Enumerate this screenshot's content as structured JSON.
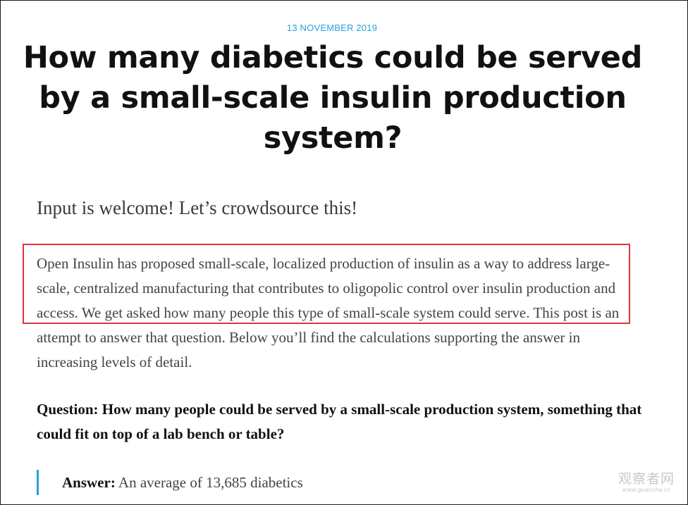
{
  "post": {
    "date": "13 NOVEMBER 2019",
    "title": "How many diabetics could be served by a small-scale insulin production system?",
    "lede": "Input is welcome! Let’s crowdsource this!",
    "body": "Open Insulin has proposed small-scale, localized production of insulin as a way to address large-scale, centralized manufacturing that contributes to oligopolic control over insulin production and access. We get asked how many people this type of small-scale system could serve. This post is an attempt to answer that question. Below you’ll find the calculations supporting the answer in increasing levels of detail.",
    "question": "Question: How many people could be served by a small-scale production system, something that could fit on top of a lab bench or table?",
    "answer": {
      "label": "Answer:",
      "text": " An average of 13,685 diabetics"
    }
  },
  "colors": {
    "accent": "#2aa0d8",
    "highlight_border": "#e0343c"
  },
  "watermark": {
    "main": "观察者网",
    "url": "www.guancha.cn"
  }
}
